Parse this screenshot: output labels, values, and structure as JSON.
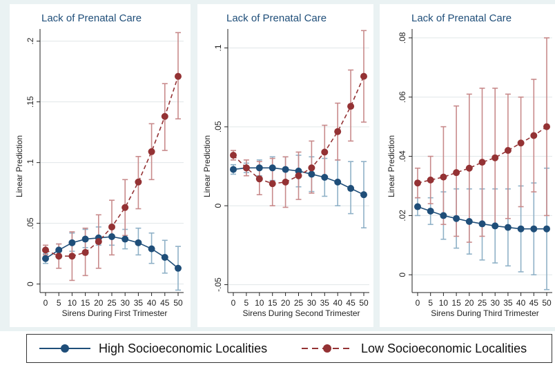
{
  "colors": {
    "high": "#1f4e79",
    "low": "#943234",
    "high_ci": "#8fb1c7",
    "low_ci": "#c88a8b",
    "grid": "#e0e6e8",
    "panel_bg": "#eaf2f3",
    "title": "#1f4e79"
  },
  "chart_data": [
    {
      "type": "line",
      "title": "Lack of Prenatal Care",
      "xlabel": "Sirens During First Trimester",
      "ylabel": "Linear Prediction",
      "x": [
        0,
        5,
        10,
        15,
        20,
        25,
        30,
        35,
        40,
        45,
        50
      ],
      "yticks": [
        0,
        0.05,
        0.1,
        0.15,
        0.2
      ],
      "ytick_labels": [
        "0",
        ".05",
        ".1",
        ".15",
        ".2"
      ],
      "ylim": [
        -0.007,
        0.21
      ],
      "grid": true,
      "series": [
        {
          "name": "High Socioeconomic Localities",
          "style": "solid",
          "values": [
            0.021,
            0.028,
            0.034,
            0.037,
            0.038,
            0.039,
            0.037,
            0.034,
            0.029,
            0.022,
            0.013
          ],
          "lower": [
            0.017,
            0.023,
            0.027,
            0.03,
            0.032,
            0.032,
            0.029,
            0.024,
            0.017,
            0.009,
            -0.005
          ],
          "upper": [
            0.025,
            0.033,
            0.042,
            0.045,
            0.047,
            0.046,
            0.045,
            0.046,
            0.042,
            0.036,
            0.031
          ]
        },
        {
          "name": "Low Socioeconomic Localities",
          "style": "dash",
          "values": [
            0.028,
            0.023,
            0.023,
            0.026,
            0.035,
            0.047,
            0.063,
            0.084,
            0.109,
            0.138,
            0.171
          ],
          "lower": [
            0.024,
            0.013,
            0.003,
            0.007,
            0.013,
            0.024,
            0.04,
            0.062,
            0.086,
            0.11,
            0.136
          ],
          "upper": [
            0.032,
            0.033,
            0.043,
            0.046,
            0.057,
            0.069,
            0.086,
            0.105,
            0.132,
            0.165,
            0.207
          ]
        }
      ]
    },
    {
      "type": "line",
      "title": "Lack of Prenatal Care",
      "xlabel": "Sirens During Second Trimester",
      "ylabel": "Linear Prediction",
      "x": [
        0,
        5,
        10,
        15,
        20,
        25,
        30,
        35,
        40,
        45,
        50
      ],
      "yticks": [
        -0.05,
        0,
        0.05,
        0.1
      ],
      "ytick_labels": [
        "-.05",
        "0",
        ".05",
        ".1"
      ],
      "ylim": [
        -0.055,
        0.112
      ],
      "grid": true,
      "series": [
        {
          "name": "High Socioeconomic Localities",
          "style": "solid",
          "values": [
            0.023,
            0.024,
            0.024,
            0.024,
            0.023,
            0.022,
            0.02,
            0.018,
            0.015,
            0.011,
            0.007
          ],
          "lower": [
            0.02,
            0.021,
            0.019,
            0.016,
            0.015,
            0.012,
            0.009,
            0.006,
            0.0,
            -0.005,
            -0.014
          ],
          "upper": [
            0.026,
            0.027,
            0.029,
            0.031,
            0.031,
            0.032,
            0.031,
            0.03,
            0.029,
            0.028,
            0.028
          ]
        },
        {
          "name": "Low Socioeconomic Localities",
          "style": "dash",
          "values": [
            0.032,
            0.024,
            0.017,
            0.014,
            0.015,
            0.019,
            0.024,
            0.034,
            0.047,
            0.063,
            0.082
          ],
          "lower": [
            0.029,
            0.019,
            0.007,
            0.0,
            -0.001,
            0.004,
            0.008,
            0.019,
            0.029,
            0.041,
            0.053
          ],
          "upper": [
            0.035,
            0.029,
            0.028,
            0.03,
            0.031,
            0.034,
            0.041,
            0.051,
            0.065,
            0.086,
            0.111
          ]
        }
      ]
    },
    {
      "type": "line",
      "title": "Lack of Prenatal Care",
      "xlabel": "Sirens During Third Trimester",
      "ylabel": "Linear Prediction",
      "x": [
        0,
        5,
        10,
        15,
        20,
        25,
        30,
        35,
        40,
        45,
        50
      ],
      "yticks": [
        0,
        0.02,
        0.04,
        0.06,
        0.08
      ],
      "ytick_labels": [
        "0",
        ".02",
        ".04",
        ".06",
        ".08"
      ],
      "ylim": [
        -0.006,
        0.083
      ],
      "grid": true,
      "series": [
        {
          "name": "High Socioeconomic Localities",
          "style": "solid",
          "values": [
            0.023,
            0.0215,
            0.02,
            0.019,
            0.018,
            0.0172,
            0.0165,
            0.016,
            0.0155,
            0.0155,
            0.0155
          ],
          "lower": [
            0.02,
            0.017,
            0.012,
            0.009,
            0.007,
            0.005,
            0.004,
            0.003,
            0.001,
            0.0,
            -0.005
          ],
          "upper": [
            0.026,
            0.026,
            0.028,
            0.029,
            0.029,
            0.029,
            0.029,
            0.029,
            0.03,
            0.031,
            0.036
          ]
        },
        {
          "name": "Low Socioeconomic Localities",
          "style": "dash",
          "values": [
            0.031,
            0.032,
            0.033,
            0.0345,
            0.036,
            0.038,
            0.0395,
            0.042,
            0.0445,
            0.047,
            0.05
          ],
          "lower": [
            0.026,
            0.024,
            0.017,
            0.013,
            0.011,
            0.013,
            0.016,
            0.019,
            0.023,
            0.028,
            0.02
          ],
          "upper": [
            0.036,
            0.04,
            0.05,
            0.057,
            0.061,
            0.063,
            0.063,
            0.061,
            0.06,
            0.066,
            0.08
          ]
        }
      ]
    }
  ],
  "legend": {
    "items": [
      {
        "label": "High Socioeconomic Localities",
        "style": "solid"
      },
      {
        "label": "Low Socioeconomic Localities",
        "style": "dash"
      }
    ],
    "placement": "bottom"
  }
}
